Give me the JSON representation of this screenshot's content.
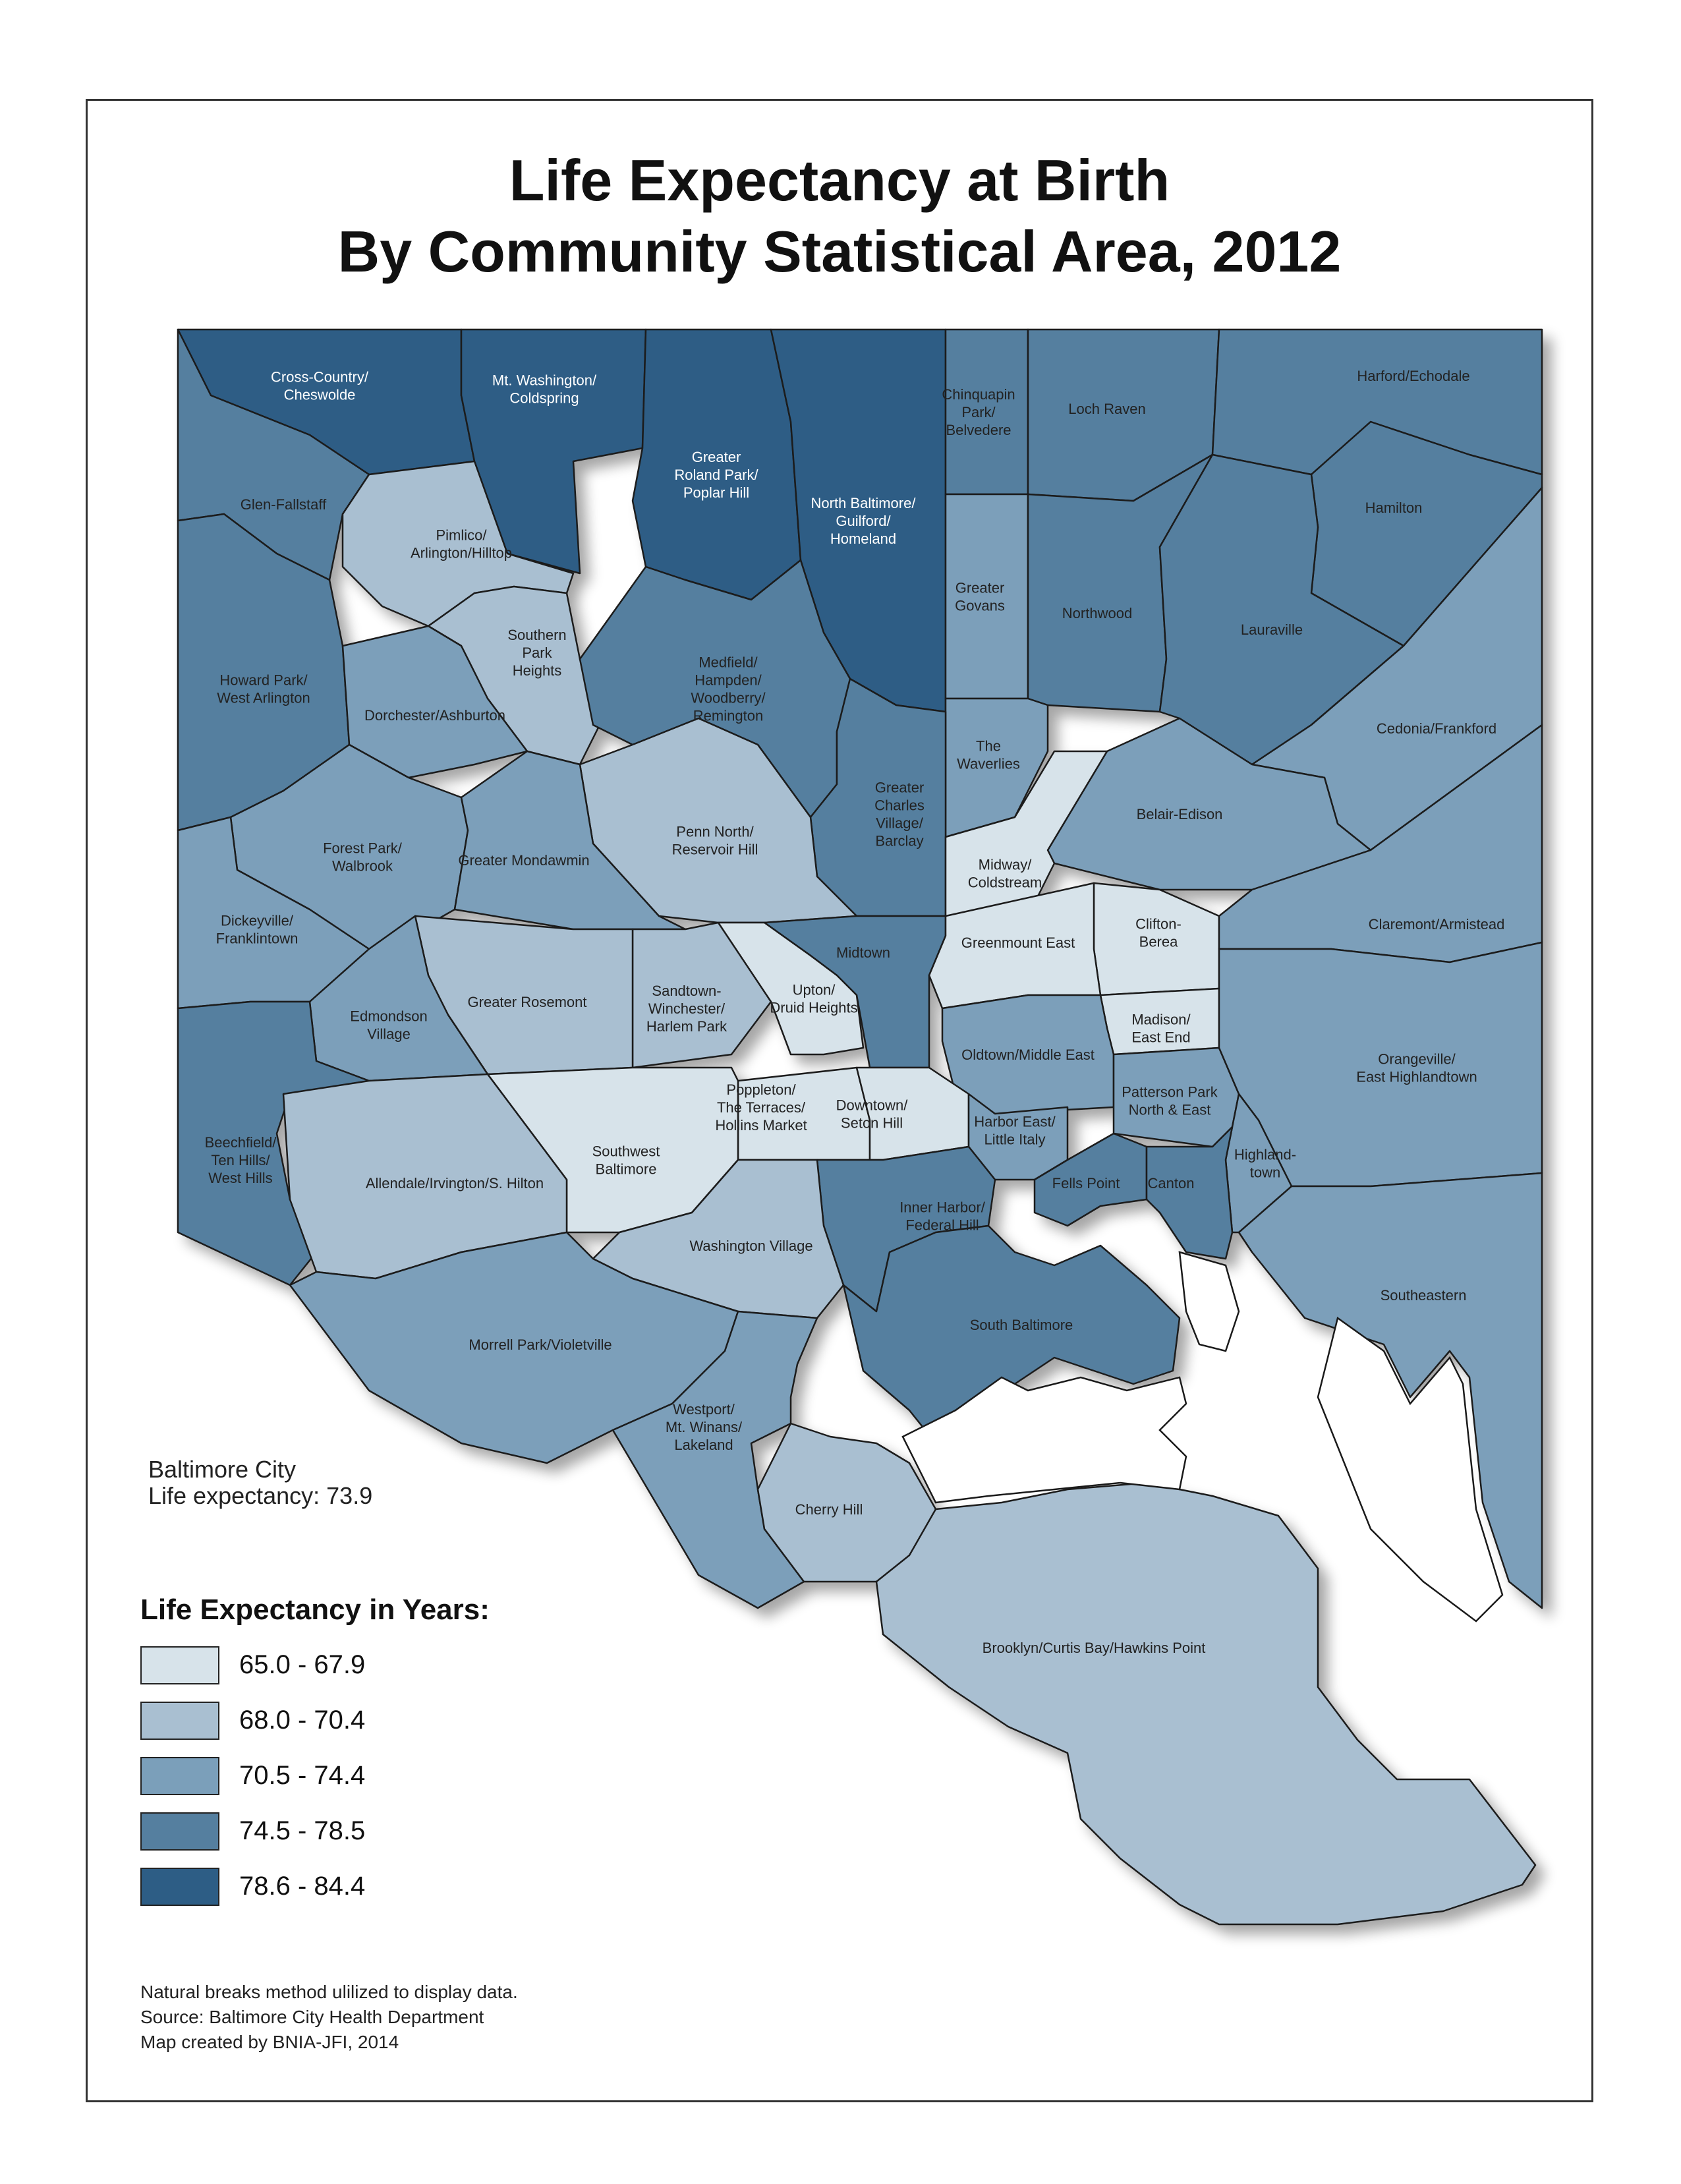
{
  "title": {
    "line1": "Life Expectancy at Birth",
    "line2": "By Community Statistical Area, 2012"
  },
  "colors": {
    "class1": "#d7e3ea",
    "class2": "#a9bfd1",
    "class3": "#7b9fba",
    "class4": "#557f9f",
    "class5": "#2d5d85",
    "border": "#1a1a1a",
    "water": "#ffffff"
  },
  "city": {
    "line1": "Baltimore City",
    "line2": "Life expectancy: 73.9"
  },
  "legend": {
    "title": "Life Expectancy in Years:",
    "items": [
      {
        "label": "65.0 - 67.9",
        "class": "class1"
      },
      {
        "label": "68.0 - 70.4",
        "class": "class2"
      },
      {
        "label": "70.5 - 74.4",
        "class": "class3"
      },
      {
        "label": "74.5 - 78.5",
        "class": "class4"
      },
      {
        "label": "78.6 - 84.4",
        "class": "class5"
      }
    ]
  },
  "notes": {
    "line1": "Natural breaks method ulilized to display data.",
    "line2": "Source: Baltimore City Health Department",
    "line3": "Map created by BNIA-JFI, 2014"
  },
  "areas": [
    {
      "id": "cross-country",
      "lines": [
        "Cross-Country/",
        "Cheswolde"
      ],
      "class": "class5"
    },
    {
      "id": "mt-washington",
      "lines": [
        "Mt. Washington/",
        "Coldspring"
      ],
      "class": "class5"
    },
    {
      "id": "roland-park",
      "lines": [
        "Greater",
        "Roland Park/",
        "Poplar Hill"
      ],
      "class": "class5"
    },
    {
      "id": "north-baltimore",
      "lines": [
        "North Baltimore/",
        "Guilford/",
        "Homeland"
      ],
      "class": "class5"
    },
    {
      "id": "chinquapin",
      "lines": [
        "Chinquapin",
        "Park/",
        "Belvedere"
      ],
      "class": "class4"
    },
    {
      "id": "loch-raven",
      "lines": [
        "Loch Raven"
      ],
      "class": "class4"
    },
    {
      "id": "harford",
      "lines": [
        "Harford/Echodale"
      ],
      "class": "class4"
    },
    {
      "id": "glen-fallstaff",
      "lines": [
        "Glen-Fallstaff"
      ],
      "class": "class4"
    },
    {
      "id": "pimlico",
      "lines": [
        "Pimlico/",
        "Arlington/Hilltop"
      ],
      "class": "class2"
    },
    {
      "id": "hamilton",
      "lines": [
        "Hamilton"
      ],
      "class": "class4"
    },
    {
      "id": "southern-park",
      "lines": [
        "Southern",
        "Park",
        "Heights"
      ],
      "class": "class2"
    },
    {
      "id": "greater-govans",
      "lines": [
        "Greater",
        "Govans"
      ],
      "class": "class3"
    },
    {
      "id": "northwood",
      "lines": [
        "Northwood"
      ],
      "class": "class4"
    },
    {
      "id": "lauraville",
      "lines": [
        "Lauraville"
      ],
      "class": "class4"
    },
    {
      "id": "howard-park",
      "lines": [
        "Howard Park/",
        "West Arlington"
      ],
      "class": "class4"
    },
    {
      "id": "medfield",
      "lines": [
        "Medfield/",
        "Hampden/",
        "Woodberry/",
        "Remington"
      ],
      "class": "class4"
    },
    {
      "id": "dorchester",
      "lines": [
        "Dorchester/Ashburton"
      ],
      "class": "class3"
    },
    {
      "id": "cedonia",
      "lines": [
        "Cedonia/Frankford"
      ],
      "class": "class3"
    },
    {
      "id": "waverlies",
      "lines": [
        "The",
        "Waverlies"
      ],
      "class": "class3"
    },
    {
      "id": "charles-village",
      "lines": [
        "Greater",
        "Charles",
        "Village/",
        "Barclay"
      ],
      "class": "class4"
    },
    {
      "id": "belair-edison",
      "lines": [
        "Belair-Edison"
      ],
      "class": "class3"
    },
    {
      "id": "forest-park",
      "lines": [
        "Forest Park/",
        "Walbrook"
      ],
      "class": "class3"
    },
    {
      "id": "penn-north",
      "lines": [
        "Penn North/",
        "Reservoir Hill"
      ],
      "class": "class2"
    },
    {
      "id": "mondawmin",
      "lines": [
        "Greater Mondawmin"
      ],
      "class": "class3"
    },
    {
      "id": "midway",
      "lines": [
        "Midway/",
        "Coldstream"
      ],
      "class": "class1"
    },
    {
      "id": "dickeyville",
      "lines": [
        "Dickeyville/",
        "Franklintown"
      ],
      "class": "class3"
    },
    {
      "id": "clifton",
      "lines": [
        "Clifton-",
        "Berea"
      ],
      "class": "class1"
    },
    {
      "id": "claremont",
      "lines": [
        "Claremont/Armistead"
      ],
      "class": "class3"
    },
    {
      "id": "midtown",
      "lines": [
        "Midtown"
      ],
      "class": "class4"
    },
    {
      "id": "greenmount",
      "lines": [
        "Greenmount East"
      ],
      "class": "class1"
    },
    {
      "id": "sandtown",
      "lines": [
        "Sandtown-",
        "Winchester/",
        "Harlem Park"
      ],
      "class": "class2"
    },
    {
      "id": "upton",
      "lines": [
        "Upton/",
        "Druid Heights"
      ],
      "class": "class1"
    },
    {
      "id": "rosemont",
      "lines": [
        "Greater Rosemont"
      ],
      "class": "class2"
    },
    {
      "id": "edmondson",
      "lines": [
        "Edmondson",
        "Village"
      ],
      "class": "class3"
    },
    {
      "id": "madison",
      "lines": [
        "Madison/",
        "East End"
      ],
      "class": "class1"
    },
    {
      "id": "oldtown",
      "lines": [
        "Oldtown/Middle East"
      ],
      "class": "class3"
    },
    {
      "id": "patterson",
      "lines": [
        "Patterson Park",
        "North & East"
      ],
      "class": "class3"
    },
    {
      "id": "orangeville",
      "lines": [
        "Orangeville/",
        "East Highlandtown"
      ],
      "class": "class3"
    },
    {
      "id": "poppleton",
      "lines": [
        "Poppleton/",
        "The Terraces/",
        "Hollins Market"
      ],
      "class": "class1"
    },
    {
      "id": "downtown",
      "lines": [
        "Downtown/",
        "Seton Hill"
      ],
      "class": "class1"
    },
    {
      "id": "harbor-east",
      "lines": [
        "Harbor East/",
        "Little Italy"
      ],
      "class": "class3"
    },
    {
      "id": "highlandtown",
      "lines": [
        "Highland-",
        "town"
      ],
      "class": "class3"
    },
    {
      "id": "beechfield",
      "lines": [
        "Beechfield/",
        "Ten Hills/",
        "West Hills"
      ],
      "class": "class4"
    },
    {
      "id": "southwest",
      "lines": [
        "Southwest",
        "Baltimore"
      ],
      "class": "class1"
    },
    {
      "id": "allendale",
      "lines": [
        "Allendale/Irvington/S. Hilton"
      ],
      "class": "class2"
    },
    {
      "id": "fells-point",
      "lines": [
        "Fells Point"
      ],
      "class": "class4"
    },
    {
      "id": "canton",
      "lines": [
        "Canton"
      ],
      "class": "class4"
    },
    {
      "id": "inner-harbor",
      "lines": [
        "Inner Harbor/",
        "Federal Hill"
      ],
      "class": "class4"
    },
    {
      "id": "washington-village",
      "lines": [
        "Washington Village"
      ],
      "class": "class2"
    },
    {
      "id": "southeastern",
      "lines": [
        "Southeastern"
      ],
      "class": "class3"
    },
    {
      "id": "south-baltimore",
      "lines": [
        "South Baltimore"
      ],
      "class": "class4"
    },
    {
      "id": "morrell-park",
      "lines": [
        "Morrell Park/Violetville"
      ],
      "class": "class3"
    },
    {
      "id": "westport",
      "lines": [
        "Westport/",
        "Mt. Winans/",
        "Lakeland"
      ],
      "class": "class3"
    },
    {
      "id": "cherry-hill",
      "lines": [
        "Cherry Hill"
      ],
      "class": "class2"
    },
    {
      "id": "brooklyn",
      "lines": [
        "Brooklyn/Curtis Bay/Hawkins Point"
      ],
      "class": "class2"
    }
  ]
}
